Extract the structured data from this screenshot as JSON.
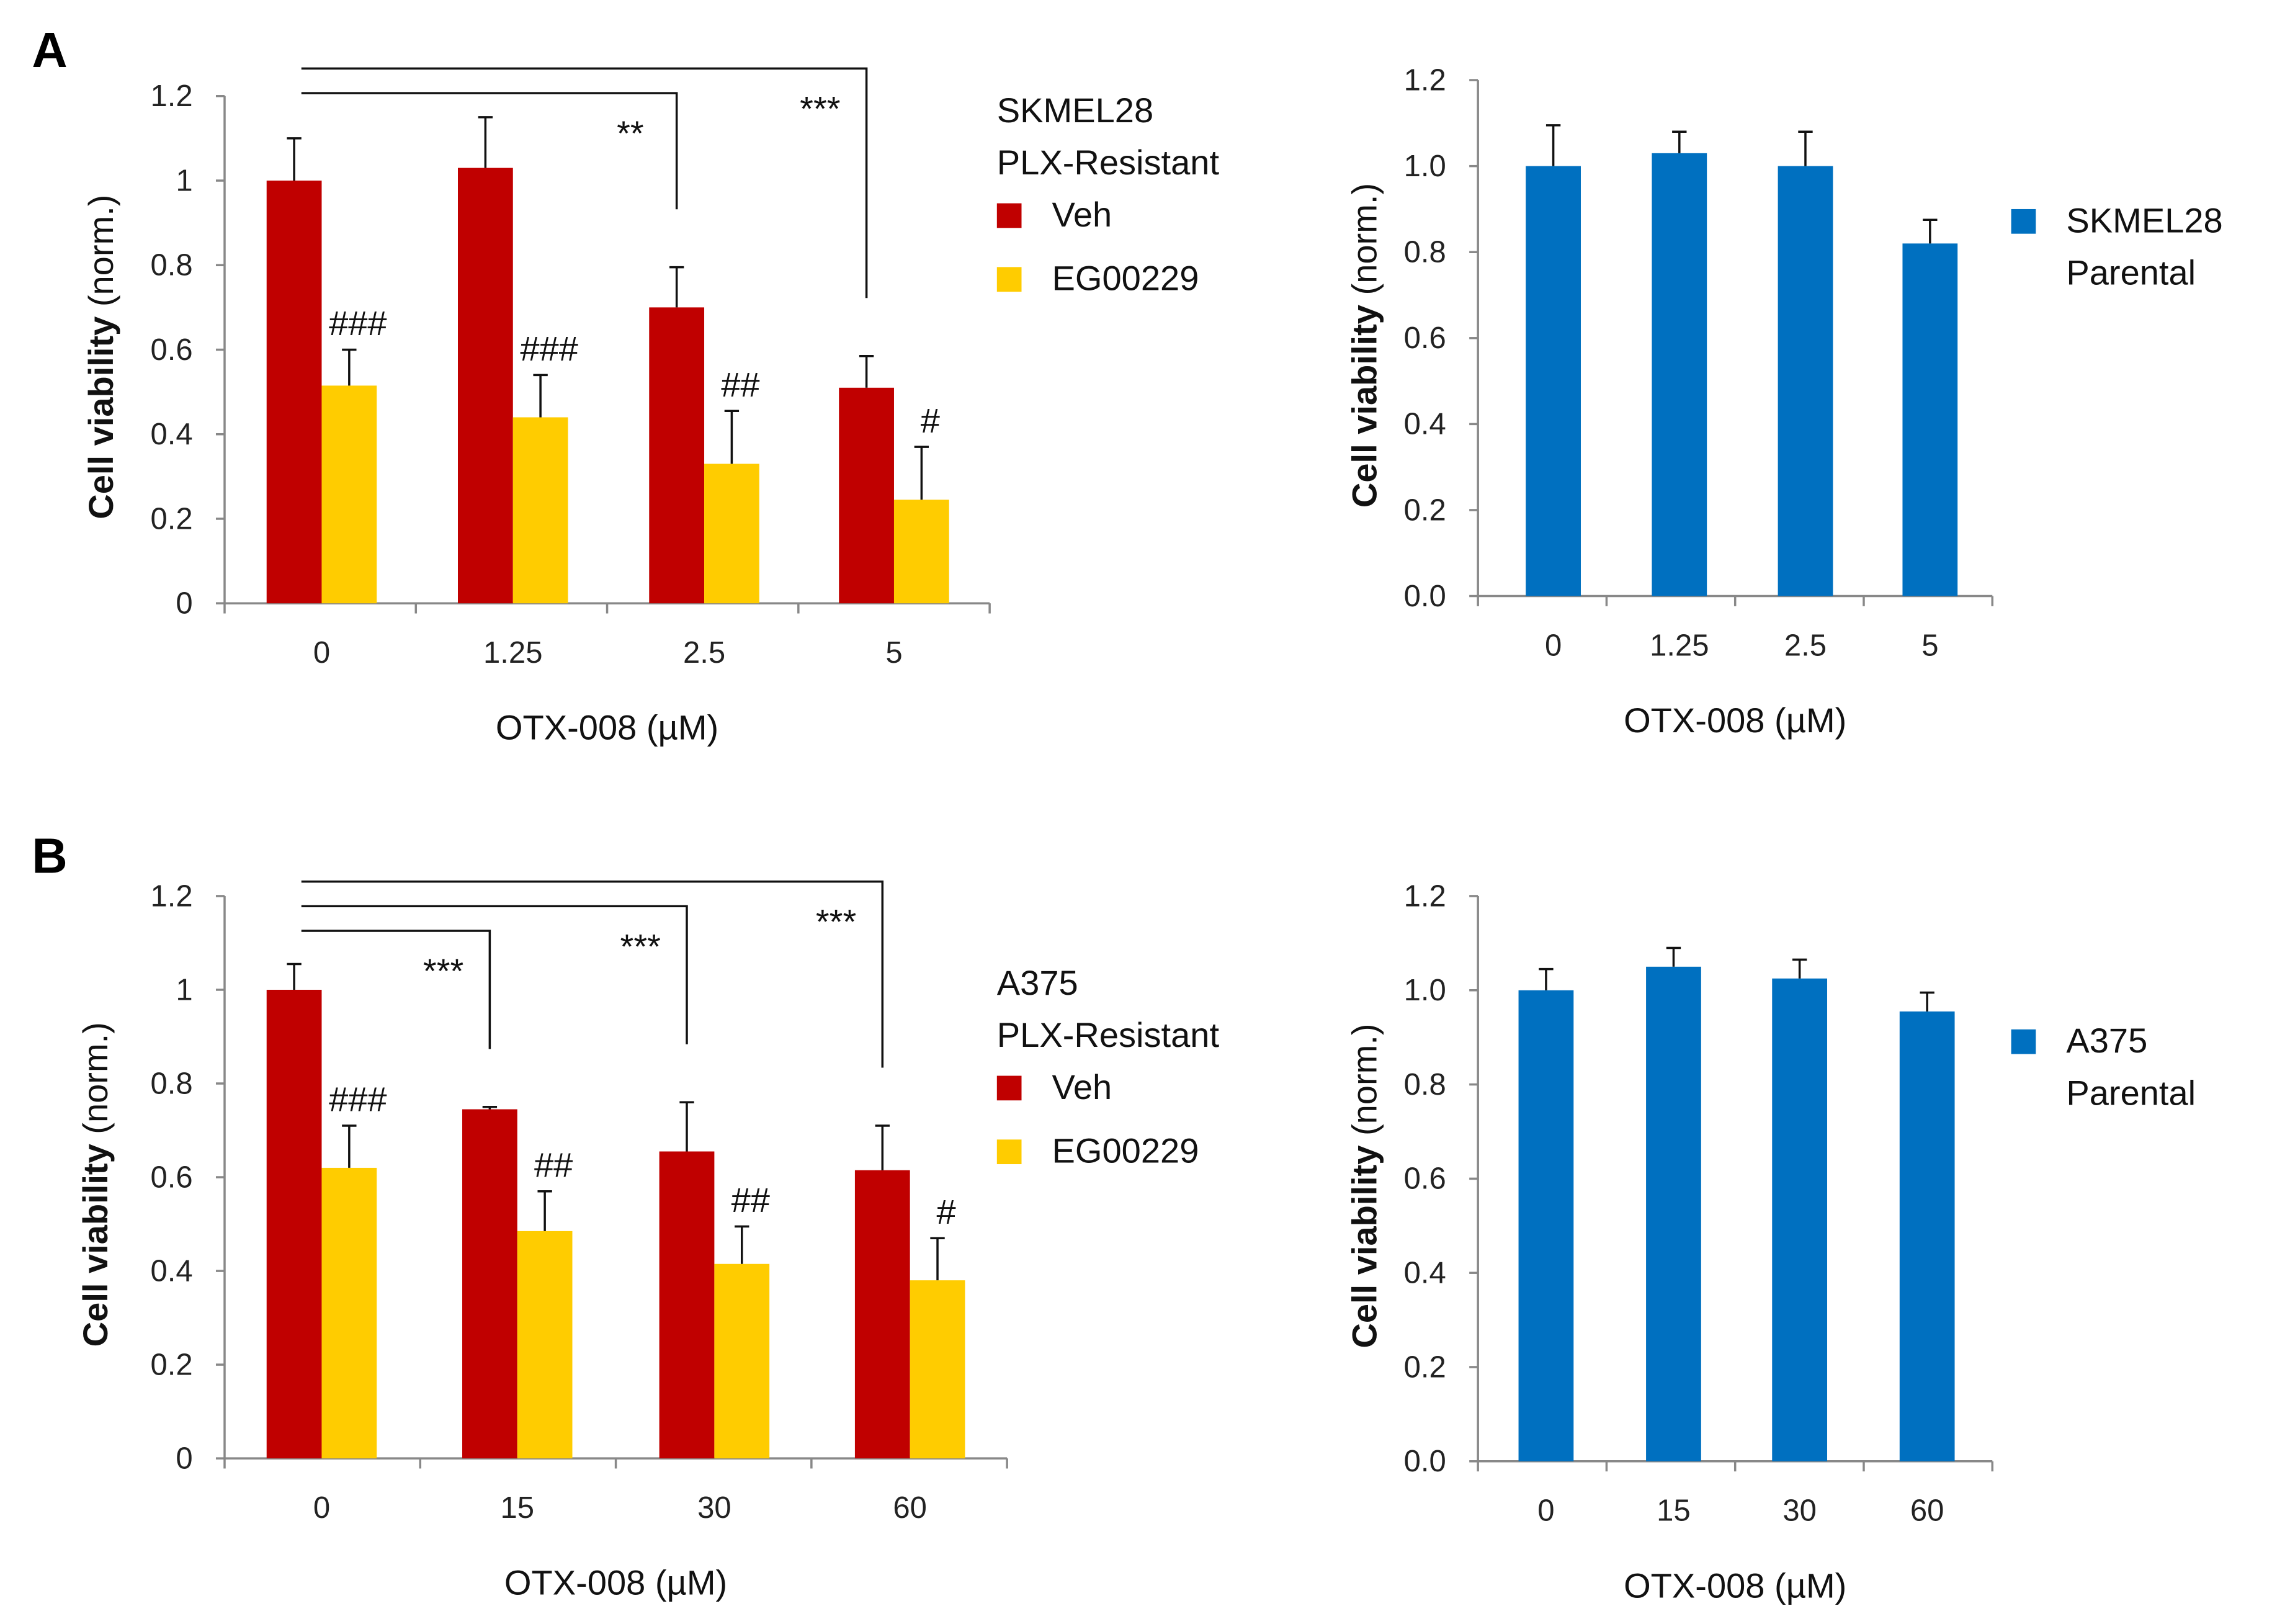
{
  "panel_labels": [
    "A",
    "B"
  ],
  "colors": {
    "veh": "#C00000",
    "eg": "#FFCC00",
    "parental": "#0070C0",
    "axis": "#888888"
  },
  "chart_data": [
    {
      "type": "bar",
      "panel": "A",
      "title": "",
      "xlabel": "OTX-008 (µM)",
      "ylabel_bold": "Cell viability",
      "ylabel_rest": " (norm.)",
      "ylim": [
        0,
        1.2
      ],
      "yticks": [
        "0",
        "0.2",
        "0.4",
        "0.6",
        "0.8",
        "1",
        "1.2"
      ],
      "categories": [
        "0",
        "1.25",
        "2.5",
        "5"
      ],
      "legend_title": [
        "SKMEL28",
        "PLX-Resistant"
      ],
      "legend_placement": "right",
      "series": [
        {
          "name": "Veh",
          "color": "#C00000",
          "values": [
            1.0,
            1.03,
            0.7,
            0.51
          ],
          "errors": [
            0.1,
            0.12,
            0.095,
            0.075
          ]
        },
        {
          "name": "EG00229",
          "color": "#FFCC00",
          "values": [
            0.515,
            0.44,
            0.33,
            0.245
          ],
          "errors": [
            0.085,
            0.1,
            0.125,
            0.125
          ],
          "marks": [
            "###",
            "###",
            "##",
            "#"
          ]
        }
      ],
      "brackets": [
        {
          "from": 0,
          "to": 2,
          "label": "**"
        },
        {
          "from": 0,
          "to": 3,
          "label": "***"
        }
      ]
    },
    {
      "type": "bar",
      "panel": "A-right",
      "title": "",
      "xlabel": "OTX-008 (µM)",
      "ylabel_bold": "Cell viability",
      "ylabel_rest": " (norm.)",
      "ylim": [
        0,
        1.2
      ],
      "yticks": [
        "0.0",
        "0.2",
        "0.4",
        "0.6",
        "0.8",
        "1.0",
        "1.2"
      ],
      "categories": [
        "0",
        "1.25",
        "2.5",
        "5"
      ],
      "legend_title": [],
      "legend_placement": "right",
      "series": [
        {
          "name": "SKMEL28\nParental",
          "label_lines": [
            "SKMEL28",
            "Parental"
          ],
          "color": "#0070C0",
          "values": [
            1.0,
            1.03,
            1.0,
            0.82
          ],
          "errors": [
            0.095,
            0.05,
            0.08,
            0.055
          ]
        }
      ],
      "brackets": []
    },
    {
      "type": "bar",
      "panel": "B",
      "title": "",
      "xlabel": "OTX-008 (µM)",
      "ylabel_bold": "Cell viability",
      "ylabel_rest": " (norm.)",
      "ylim": [
        0,
        1.2
      ],
      "yticks": [
        "0",
        "0.2",
        "0.4",
        "0.6",
        "0.8",
        "1",
        "1.2"
      ],
      "categories": [
        "0",
        "15",
        "30",
        "60"
      ],
      "legend_title": [
        "A375",
        "PLX-Resistant"
      ],
      "legend_placement": "right",
      "series": [
        {
          "name": "Veh",
          "color": "#C00000",
          "values": [
            1.0,
            0.745,
            0.655,
            0.615
          ],
          "errors": [
            0.055,
            0.005,
            0.105,
            0.095
          ]
        },
        {
          "name": "EG00229",
          "color": "#FFCC00",
          "values": [
            0.62,
            0.485,
            0.415,
            0.38
          ],
          "errors": [
            0.09,
            0.085,
            0.08,
            0.09
          ],
          "marks": [
            "###",
            "##",
            "##",
            "#"
          ]
        }
      ],
      "brackets": [
        {
          "from": 0,
          "to": 1,
          "label": "***"
        },
        {
          "from": 0,
          "to": 2,
          "label": "***"
        },
        {
          "from": 0,
          "to": 3,
          "label": "***"
        }
      ]
    },
    {
      "type": "bar",
      "panel": "B-right",
      "title": "",
      "xlabel": "OTX-008 (µM)",
      "ylabel_bold": "Cell viability",
      "ylabel_rest": " (norm.)",
      "ylim": [
        0,
        1.2
      ],
      "yticks": [
        "0.0",
        "0.2",
        "0.4",
        "0.6",
        "0.8",
        "1.0",
        "1.2"
      ],
      "categories": [
        "0",
        "15",
        "30",
        "60"
      ],
      "legend_title": [],
      "legend_placement": "right",
      "series": [
        {
          "name": "A375\nParental",
          "label_lines": [
            "A375",
            "Parental"
          ],
          "color": "#0070C0",
          "values": [
            1.0,
            1.05,
            1.025,
            0.955
          ],
          "errors": [
            0.045,
            0.04,
            0.04,
            0.04
          ]
        }
      ],
      "brackets": []
    }
  ]
}
